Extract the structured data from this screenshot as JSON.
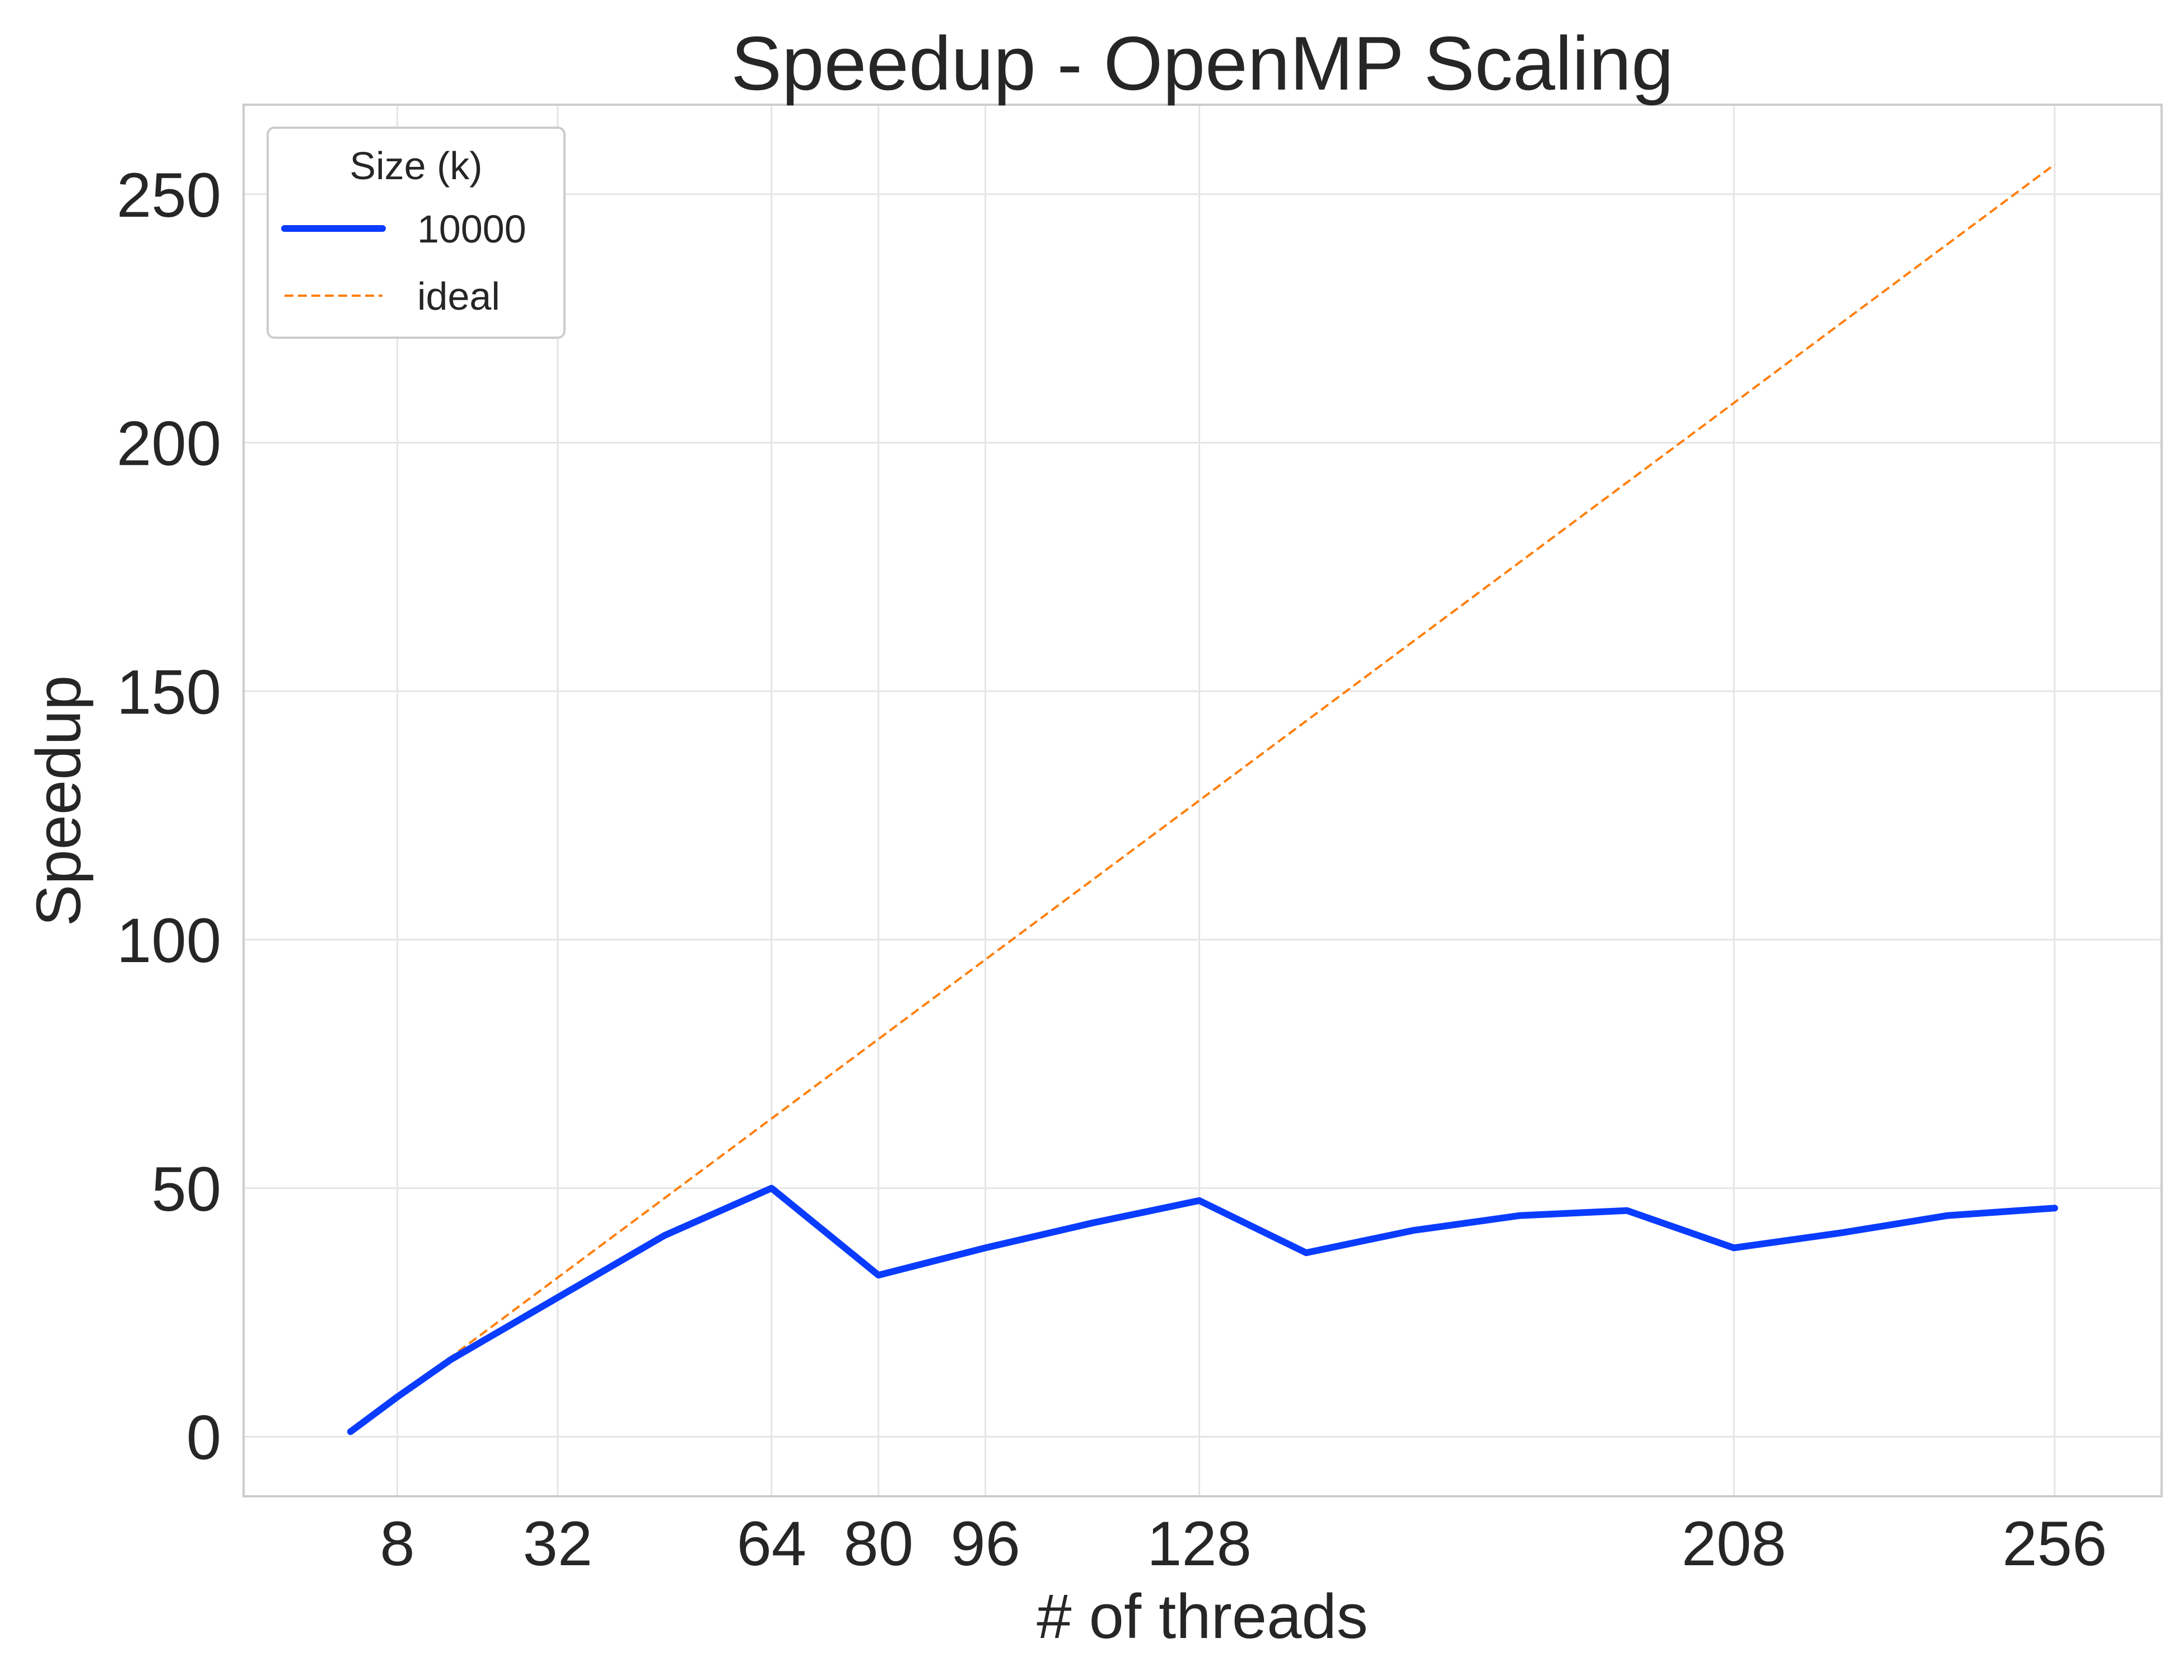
{
  "chart_data": {
    "type": "line",
    "title": "Speedup - OpenMP Scaling",
    "xlabel": "# of threads",
    "ylabel": "Speedup",
    "xlim": [
      -15,
      272
    ],
    "ylim": [
      -12,
      268
    ],
    "xticks": [
      8,
      32,
      64,
      80,
      96,
      128,
      208,
      256
    ],
    "yticks": [
      0,
      50,
      100,
      150,
      200,
      250
    ],
    "grid": true,
    "legend": {
      "title": "Size (k)",
      "location": "top-left"
    },
    "colors": {
      "measured": "#0a3cff",
      "ideal": "#ff7f0e",
      "grid": "#e5e5e5",
      "frame": "#cccccc"
    },
    "series": [
      {
        "name": "10000",
        "style": "solid",
        "x": [
          1,
          8,
          16,
          32,
          48,
          64,
          80,
          96,
          112,
          128,
          144,
          160,
          176,
          192,
          208,
          224,
          240,
          256
        ],
        "y": [
          1,
          8,
          15.5,
          28,
          40.5,
          50,
          32.5,
          38,
          43,
          47.5,
          37,
          41.5,
          44.5,
          45.5,
          38,
          41,
          44.5,
          46
        ]
      },
      {
        "name": "ideal",
        "style": "dashed",
        "x": [
          1,
          256
        ],
        "y": [
          1,
          256
        ]
      }
    ]
  }
}
